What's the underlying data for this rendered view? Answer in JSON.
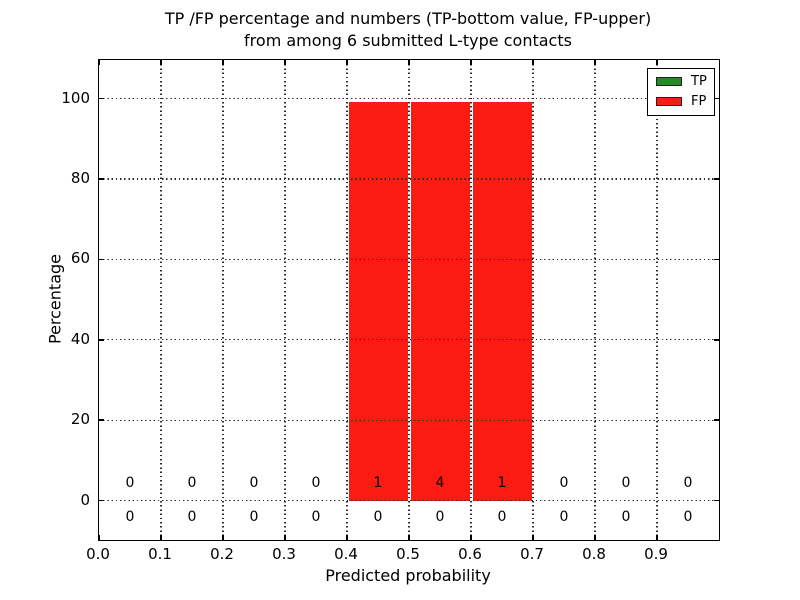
{
  "figure": {
    "title_line1": "TP /FP percentage and numbers (TP-bottom value, FP-upper)",
    "title_line2": "from among 6 submitted L-type contacts",
    "xlabel": "Predicted probability",
    "ylabel": "Percentage"
  },
  "legend": {
    "position": "upper right",
    "items": [
      {
        "label": "TP",
        "color": "#228b22"
      },
      {
        "label": "FP",
        "color": "#fa1c12"
      }
    ]
  },
  "chart_data": {
    "type": "bar",
    "subtype": "stacked-histogram",
    "title": "TP /FP percentage and numbers (TP-bottom value, FP-upper) from among 6 submitted L-type contacts",
    "xlabel": "Predicted probability",
    "ylabel": "Percentage",
    "xlim": [
      0.0,
      1.0
    ],
    "ylim": [
      -9.8,
      109.6
    ],
    "grid": true,
    "grid_style": "dotted",
    "x_tick_labels": [
      "0.0",
      "0.1",
      "0.2",
      "0.3",
      "0.4",
      "0.5",
      "0.6",
      "0.7",
      "0.8",
      "0.9"
    ],
    "x_tick_values": [
      0.0,
      0.1,
      0.2,
      0.3,
      0.4,
      0.5,
      0.6,
      0.7,
      0.8,
      0.9
    ],
    "y_tick_values": [
      0,
      20,
      40,
      60,
      80,
      100
    ],
    "bin_edges": [
      0.0,
      0.1,
      0.2,
      0.3,
      0.4,
      0.5,
      0.6,
      0.7,
      0.8,
      0.9,
      1.0
    ],
    "bin_centers": [
      0.05,
      0.15,
      0.25,
      0.35,
      0.45,
      0.55,
      0.65,
      0.75,
      0.85,
      0.95
    ],
    "series": [
      {
        "name": "TP",
        "color": "#228b22",
        "percent": [
          0,
          0,
          0,
          0,
          0,
          0,
          0,
          0,
          0,
          0
        ],
        "counts": [
          0,
          0,
          0,
          0,
          0,
          0,
          0,
          0,
          0,
          0
        ],
        "count_label_y": -4.0
      },
      {
        "name": "FP",
        "color": "#fa1c12",
        "percent": [
          0,
          0,
          0,
          0,
          100,
          100,
          100,
          0,
          0,
          0
        ],
        "counts": [
          0,
          0,
          0,
          0,
          1,
          4,
          1,
          0,
          0,
          0
        ],
        "count_label_y": 4.5
      }
    ]
  }
}
